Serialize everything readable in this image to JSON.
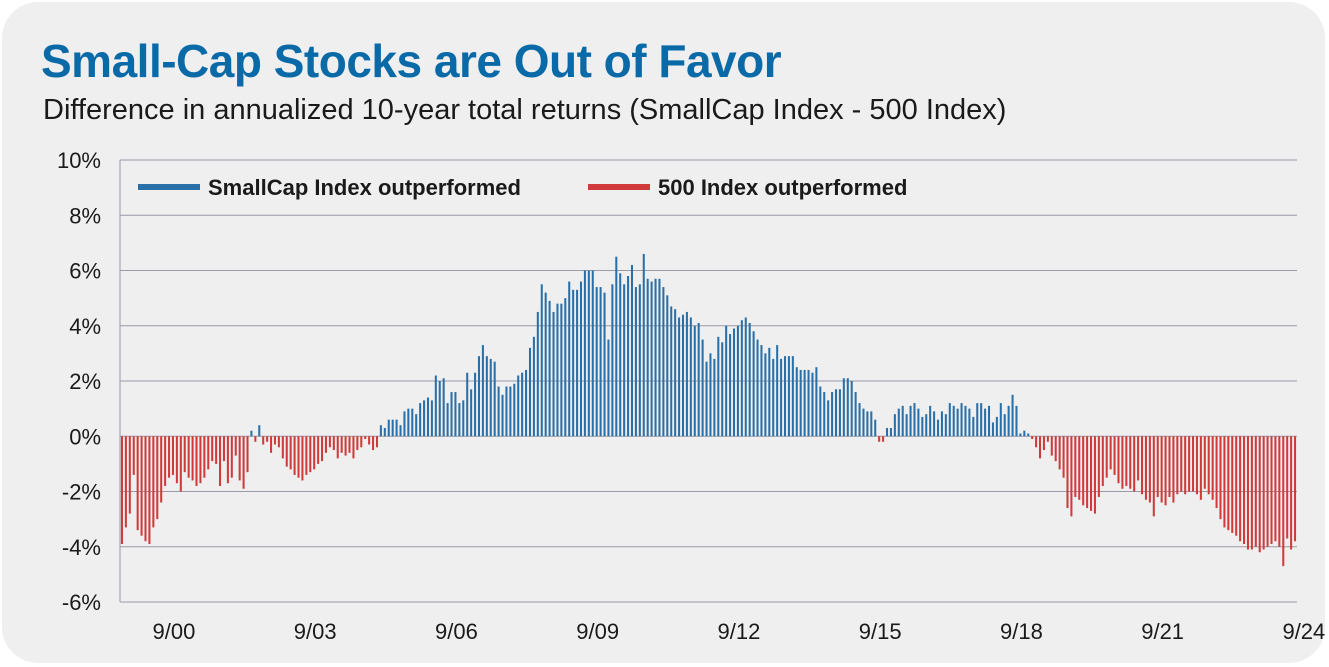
{
  "title": "Small-Cap Stocks are Out of Favor",
  "subtitle": "Difference in annualized 10-year total returns (SmallCap Index - 500 Index)",
  "colors": {
    "title": "#0a6aa8",
    "positive": "#2a70a8",
    "negative": "#d03a3a",
    "grid": "#9a9aa8",
    "background": "#efefef"
  },
  "chart_data": {
    "type": "bar",
    "title": "Small-Cap Stocks are Out of Favor",
    "subtitle": "Difference in annualized 10-year total returns (SmallCap Index - 500 Index)",
    "xlabel": "",
    "ylabel": "",
    "ylim": [
      -6,
      10
    ],
    "yticks": [
      10,
      8,
      6,
      4,
      2,
      0,
      -2,
      -4,
      -6
    ],
    "ytick_labels": [
      "10%",
      "8%",
      "6%",
      "4%",
      "2%",
      "0%",
      "-2%",
      "-4%",
      "-6%"
    ],
    "xtick_labels": [
      "9/00",
      "9/03",
      "9/06",
      "9/09",
      "9/12",
      "9/15",
      "9/18",
      "9/21",
      "9/24"
    ],
    "grid": true,
    "legend_position": "top-left",
    "legend": [
      {
        "name": "SmallCap Index outperformed",
        "color": "#2a70a8"
      },
      {
        "name": "500 Index outperformed",
        "color": "#d03a3a"
      }
    ],
    "start_period": "9/00",
    "frequency": "monthly",
    "values": [
      -3.9,
      -3.3,
      -2.8,
      -1.4,
      -3.4,
      -3.6,
      -3.8,
      -3.9,
      -3.3,
      -3.0,
      -2.4,
      -1.8,
      -1.5,
      -1.4,
      -1.7,
      -2.0,
      -1.3,
      -1.5,
      -1.6,
      -1.8,
      -1.7,
      -1.5,
      -1.2,
      -0.9,
      -1.0,
      -1.8,
      -0.9,
      -1.7,
      -1.5,
      -0.7,
      -1.6,
      -1.9,
      -1.3,
      0.2,
      -0.2,
      0.4,
      -0.3,
      -0.2,
      -0.6,
      -0.3,
      -0.4,
      -0.8,
      -1.1,
      -1.2,
      -1.4,
      -1.5,
      -1.6,
      -1.4,
      -1.3,
      -1.2,
      -1.0,
      -0.9,
      -0.6,
      -0.4,
      -0.5,
      -0.8,
      -0.6,
      -0.7,
      -0.6,
      -0.8,
      -0.5,
      -0.4,
      -0.1,
      -0.3,
      -0.5,
      -0.4,
      0.4,
      0.3,
      0.6,
      0.6,
      0.6,
      0.4,
      0.9,
      1.0,
      1.0,
      0.8,
      1.2,
      1.3,
      1.4,
      1.3,
      2.2,
      2.0,
      2.1,
      1.2,
      1.6,
      1.6,
      1.2,
      1.3,
      2.3,
      1.7,
      2.3,
      2.9,
      3.3,
      2.9,
      2.8,
      2.7,
      1.8,
      1.5,
      1.8,
      1.8,
      1.9,
      2.2,
      2.3,
      2.4,
      3.2,
      3.6,
      4.5,
      5.5,
      5.2,
      4.9,
      4.5,
      4.8,
      4.8,
      5.0,
      5.6,
      5.3,
      5.3,
      5.6,
      6.0,
      6.0,
      6.0,
      5.4,
      5.4,
      5.2,
      3.5,
      5.5,
      6.5,
      5.9,
      5.5,
      5.8,
      6.2,
      5.4,
      5.5,
      6.6,
      5.7,
      5.6,
      5.7,
      5.7,
      5.4,
      5.1,
      4.7,
      4.6,
      4.3,
      4.4,
      4.5,
      4.3,
      4.0,
      4.1,
      3.5,
      2.7,
      3.0,
      2.8,
      3.6,
      3.4,
      4.0,
      3.7,
      3.9,
      4.0,
      4.2,
      4.3,
      4.1,
      3.8,
      3.5,
      3.3,
      3.0,
      3.2,
      2.8,
      3.3,
      2.8,
      2.9,
      2.9,
      2.9,
      2.5,
      2.4,
      2.4,
      2.4,
      2.3,
      2.5,
      1.8,
      1.6,
      1.3,
      1.6,
      1.7,
      1.7,
      2.1,
      2.1,
      2.0,
      1.6,
      1.2,
      1.0,
      0.9,
      0.9,
      0.6,
      -0.2,
      -0.2,
      0.3,
      0.3,
      0.8,
      1.0,
      1.1,
      0.8,
      1.1,
      1.2,
      1.0,
      0.7,
      0.8,
      1.1,
      0.9,
      0.6,
      0.9,
      0.8,
      1.2,
      1.1,
      1.0,
      1.2,
      1.1,
      1.0,
      0.7,
      1.2,
      1.2,
      1.0,
      1.1,
      0.5,
      0.7,
      1.2,
      0.8,
      1.1,
      1.5,
      1.1,
      0.1,
      0.2,
      0.1,
      -0.1,
      -0.4,
      -0.8,
      -0.5,
      -0.2,
      -0.7,
      -0.9,
      -1.2,
      -1.5,
      -2.6,
      -2.9,
      -2.2,
      -2.3,
      -2.5,
      -2.6,
      -2.7,
      -2.8,
      -2.2,
      -1.8,
      -1.5,
      -1.2,
      -1.4,
      -1.7,
      -1.9,
      -1.8,
      -1.9,
      -2.0,
      -1.6,
      -2.1,
      -2.3,
      -2.4,
      -2.9,
      -2.2,
      -2.4,
      -2.5,
      -2.2,
      -2.4,
      -2.1,
      -2.0,
      -2.1,
      -2.0,
      -2.0,
      -2.1,
      -2.3,
      -1.9,
      -2.1,
      -2.3,
      -2.6,
      -3.0,
      -3.3,
      -3.4,
      -3.5,
      -3.6,
      -3.8,
      -3.9,
      -4.1,
      -4.1,
      -4.0,
      -4.2,
      -4.1,
      -4.0,
      -3.9,
      -3.8,
      -4.0,
      -4.7,
      -3.7,
      -4.1,
      -3.8
    ]
  }
}
